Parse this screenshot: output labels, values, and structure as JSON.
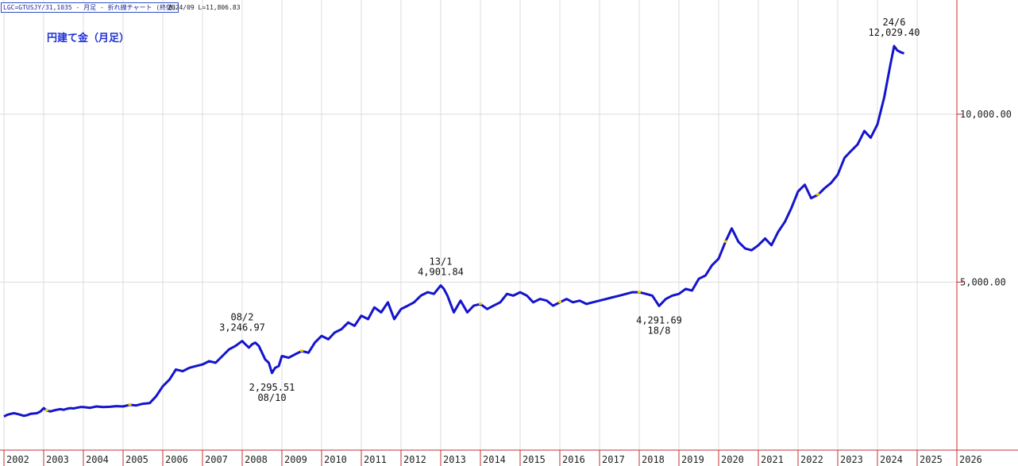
{
  "header": {
    "symbol": "LGC=GTUSJY/31,1035 - 月足 - 折れ線チャート (終値)",
    "meta": "2024/09  L=11,806.83"
  },
  "chart_data": {
    "type": "line",
    "title": "円建て金（月足）",
    "x_tick_labels": [
      "2002",
      "2003",
      "2004",
      "2005",
      "2006",
      "2007",
      "2008",
      "2009",
      "2010",
      "2011",
      "2012",
      "2013",
      "2014",
      "2015",
      "2016",
      "2017",
      "2018",
      "2019",
      "2020",
      "2021",
      "2022",
      "2023",
      "2024",
      "2025",
      "2026"
    ],
    "y_tick_labels": [
      "10,000.00",
      "5,000.00"
    ],
    "y_ticks": [
      10000,
      5000
    ],
    "xlim": [
      2002.0,
      2026.0
    ],
    "ylim": [
      0,
      13400
    ],
    "grid": true,
    "series": [
      {
        "color": "#1414cc",
        "x": [
          2002.0,
          2002.08,
          2002.17,
          2002.25,
          2002.33,
          2002.42,
          2002.5,
          2002.58,
          2002.67,
          2002.75,
          2002.83,
          2002.92,
          2003.0,
          2003.08,
          2003.17,
          2003.25,
          2003.33,
          2003.42,
          2003.5,
          2003.58,
          2003.67,
          2003.75,
          2003.83,
          2003.92,
          2004.0,
          2004.17,
          2004.33,
          2004.5,
          2004.67,
          2004.83,
          2005.0,
          2005.17,
          2005.33,
          2005.5,
          2005.67,
          2005.83,
          2006.0,
          2006.17,
          2006.33,
          2006.5,
          2006.67,
          2006.83,
          2007.0,
          2007.17,
          2007.33,
          2007.5,
          2007.67,
          2007.83,
          2008.0,
          2008.08,
          2008.17,
          2008.25,
          2008.33,
          2008.42,
          2008.5,
          2008.58,
          2008.67,
          2008.75,
          2008.83,
          2008.92,
          2009.0,
          2009.17,
          2009.33,
          2009.5,
          2009.67,
          2009.83,
          2010.0,
          2010.17,
          2010.33,
          2010.5,
          2010.67,
          2010.83,
          2011.0,
          2011.17,
          2011.33,
          2011.5,
          2011.67,
          2011.83,
          2012.0,
          2012.17,
          2012.33,
          2012.5,
          2012.67,
          2012.83,
          2013.0,
          2013.08,
          2013.17,
          2013.33,
          2013.5,
          2013.67,
          2013.83,
          2014.0,
          2014.17,
          2014.33,
          2014.5,
          2014.67,
          2014.83,
          2015.0,
          2015.17,
          2015.33,
          2015.5,
          2015.67,
          2015.83,
          2016.0,
          2016.17,
          2016.33,
          2016.5,
          2016.67,
          2016.83,
          2017.0,
          2017.17,
          2017.33,
          2017.5,
          2017.67,
          2017.83,
          2018.0,
          2018.17,
          2018.33,
          2018.5,
          2018.67,
          2018.83,
          2019.0,
          2019.17,
          2019.33,
          2019.5,
          2019.67,
          2019.83,
          2020.0,
          2020.17,
          2020.33,
          2020.5,
          2020.67,
          2020.83,
          2021.0,
          2021.17,
          2021.33,
          2021.5,
          2021.67,
          2021.83,
          2022.0,
          2022.17,
          2022.33,
          2022.5,
          2022.67,
          2022.83,
          2023.0,
          2023.17,
          2023.33,
          2023.5,
          2023.67,
          2023.83,
          2024.0,
          2024.17,
          2024.33,
          2024.42,
          2024.5,
          2024.58,
          2024.67
        ],
        "y": [
          1000,
          1050,
          1080,
          1100,
          1080,
          1050,
          1020,
          1040,
          1080,
          1090,
          1100,
          1150,
          1250,
          1180,
          1150,
          1180,
          1200,
          1220,
          1200,
          1230,
          1250,
          1240,
          1260,
          1280,
          1280,
          1260,
          1300,
          1280,
          1290,
          1310,
          1300,
          1350,
          1330,
          1380,
          1400,
          1600,
          1900,
          2100,
          2400,
          2350,
          2450,
          2500,
          2550,
          2650,
          2600,
          2800,
          3000,
          3100,
          3247,
          3150,
          3050,
          3150,
          3200,
          3100,
          2900,
          2700,
          2600,
          2296,
          2450,
          2500,
          2800,
          2750,
          2850,
          2950,
          2900,
          3200,
          3400,
          3300,
          3500,
          3600,
          3800,
          3700,
          4000,
          3900,
          4250,
          4100,
          4400,
          3900,
          4200,
          4300,
          4400,
          4600,
          4700,
          4650,
          4902,
          4800,
          4600,
          4100,
          4450,
          4100,
          4300,
          4350,
          4200,
          4300,
          4400,
          4650,
          4600,
          4700,
          4600,
          4400,
          4500,
          4450,
          4300,
          4400,
          4500,
          4400,
          4450,
          4350,
          4400,
          4450,
          4500,
          4550,
          4600,
          4650,
          4700,
          4700,
          4650,
          4600,
          4292,
          4500,
          4600,
          4650,
          4800,
          4750,
          5100,
          5200,
          5500,
          5700,
          6200,
          6600,
          6200,
          6000,
          5950,
          6100,
          6300,
          6100,
          6500,
          6800,
          7200,
          7700,
          7900,
          7500,
          7600,
          7800,
          7950,
          8200,
          8700,
          8900,
          9100,
          9500,
          9300,
          9700,
          10500,
          11500,
          12029,
          11900,
          11850,
          11807
        ]
      }
    ],
    "annotations": [
      {
        "x": 2008.0,
        "y": 3247,
        "date": "08/2",
        "value": "3,246.97",
        "pos": "above"
      },
      {
        "x": 2008.75,
        "y": 2296,
        "date": "08/10",
        "value": "2,295.51",
        "pos": "below"
      },
      {
        "x": 2013.0,
        "y": 4902,
        "date": "13/1",
        "value": "4,901.84",
        "pos": "above"
      },
      {
        "x": 2018.5,
        "y": 4292,
        "date": "18/8",
        "value": "4,291.69",
        "pos": "below"
      },
      {
        "x": 2024.42,
        "y": 12029,
        "date": "24/6",
        "value": "12,029.40",
        "pos": "above"
      }
    ]
  }
}
